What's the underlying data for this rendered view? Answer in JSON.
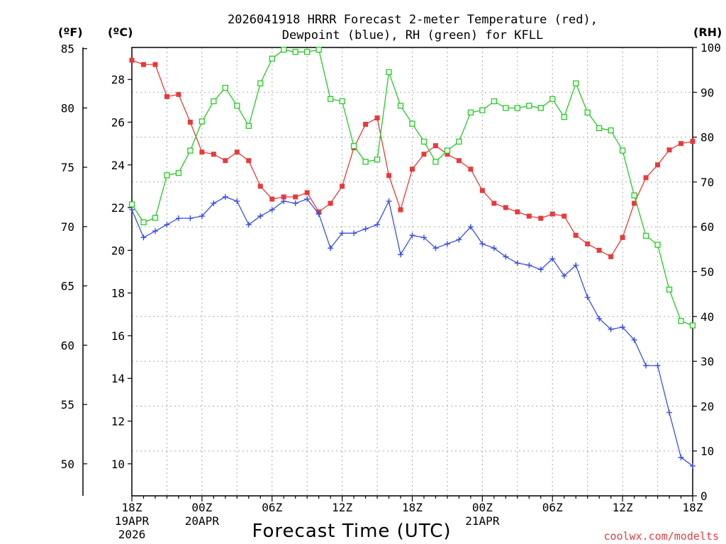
{
  "chart_data": {
    "type": "line",
    "title": [
      "2026041918 HRRR Forecast 2-meter Temperature (red),",
      "Dewpoint (blue), RH (green) for KFLL"
    ],
    "xlabel": "Forecast Time (UTC)",
    "credit": "coolwx.com/modelts",
    "unit_labels": {
      "fahrenheit": "(ºF)",
      "celsius": "(ºC)",
      "rh": "(RH)"
    },
    "x_hours": [
      0,
      1,
      2,
      3,
      4,
      5,
      6,
      7,
      8,
      9,
      10,
      11,
      12,
      13,
      14,
      15,
      16,
      17,
      18,
      19,
      20,
      21,
      22,
      23,
      24,
      25,
      26,
      27,
      28,
      29,
      30,
      31,
      32,
      33,
      34,
      35,
      36,
      37,
      38,
      39,
      40,
      41,
      42,
      43,
      44,
      45,
      46,
      47,
      48
    ],
    "x_ticks": [
      {
        "hour": 0,
        "lines": [
          "18Z",
          "19APR",
          "2026"
        ]
      },
      {
        "hour": 6,
        "lines": [
          "00Z",
          "20APR"
        ]
      },
      {
        "hour": 12,
        "lines": [
          "06Z"
        ]
      },
      {
        "hour": 18,
        "lines": [
          "12Z"
        ]
      },
      {
        "hour": 24,
        "lines": [
          "18Z"
        ]
      },
      {
        "hour": 30,
        "lines": [
          "00Z",
          "21APR"
        ]
      },
      {
        "hour": 36,
        "lines": [
          "06Z"
        ]
      },
      {
        "hour": 42,
        "lines": [
          "12Z"
        ]
      },
      {
        "hour": 48,
        "lines": [
          "18Z"
        ]
      }
    ],
    "y_celsius": {
      "range": [
        8.5,
        29.5
      ],
      "ticks": [
        10,
        12,
        14,
        16,
        18,
        20,
        22,
        24,
        26,
        28
      ]
    },
    "y_fahrenheit": {
      "ticks": [
        50,
        55,
        60,
        65,
        70,
        75,
        80,
        85
      ]
    },
    "y_rh": {
      "range": [
        0,
        100
      ],
      "ticks": [
        0,
        10,
        20,
        30,
        40,
        50,
        60,
        70,
        80,
        90,
        100
      ]
    },
    "series": [
      {
        "name": "Temperature",
        "color": "#e83a3a",
        "marker": "filled-square",
        "axis": "celsius",
        "values": [
          28.9,
          28.7,
          28.7,
          27.2,
          27.3,
          26.0,
          24.6,
          24.5,
          24.2,
          24.6,
          24.2,
          23.0,
          22.4,
          22.5,
          22.5,
          22.7,
          21.8,
          22.2,
          23.0,
          24.8,
          25.9,
          26.2,
          23.5,
          21.9,
          23.8,
          24.5,
          24.9,
          24.5,
          24.2,
          23.8,
          22.8,
          22.2,
          22.0,
          21.8,
          21.6,
          21.5,
          21.7,
          21.6,
          20.7,
          20.3,
          20.0,
          19.7,
          20.6,
          22.2,
          23.4,
          24.0,
          24.7,
          25.0,
          25.1
        ]
      },
      {
        "name": "Dewpoint",
        "color": "#3a4de8",
        "marker": "plus",
        "axis": "celsius",
        "values": [
          21.9,
          20.6,
          20.9,
          21.2,
          21.5,
          21.5,
          21.6,
          22.2,
          22.5,
          22.3,
          21.2,
          21.6,
          21.9,
          22.3,
          22.2,
          22.4,
          21.7,
          20.1,
          20.8,
          20.8,
          21.0,
          21.2,
          22.3,
          19.8,
          20.7,
          20.6,
          20.1,
          20.3,
          20.5,
          21.1,
          20.3,
          20.1,
          19.7,
          19.4,
          19.3,
          19.1,
          19.6,
          18.8,
          19.3,
          17.8,
          16.8,
          16.3,
          16.4,
          15.8,
          14.6,
          14.6,
          12.4,
          10.3,
          9.9
        ]
      },
      {
        "name": "RH",
        "color": "#22cc22",
        "marker": "open-square",
        "axis": "rh",
        "values": [
          65,
          61,
          62,
          71.5,
          72,
          77,
          83.5,
          88,
          91,
          87,
          82.5,
          92,
          97.5,
          99.5,
          99,
          99,
          99.5,
          88.5,
          88,
          78,
          74.5,
          75,
          94.5,
          87,
          83,
          79,
          74.5,
          77,
          79,
          85.5,
          86,
          88,
          86.5,
          86.5,
          87,
          86.5,
          88.5,
          84.5,
          92,
          85.5,
          82,
          81.5,
          77,
          67,
          58,
          56,
          46,
          39,
          38
        ]
      }
    ]
  }
}
